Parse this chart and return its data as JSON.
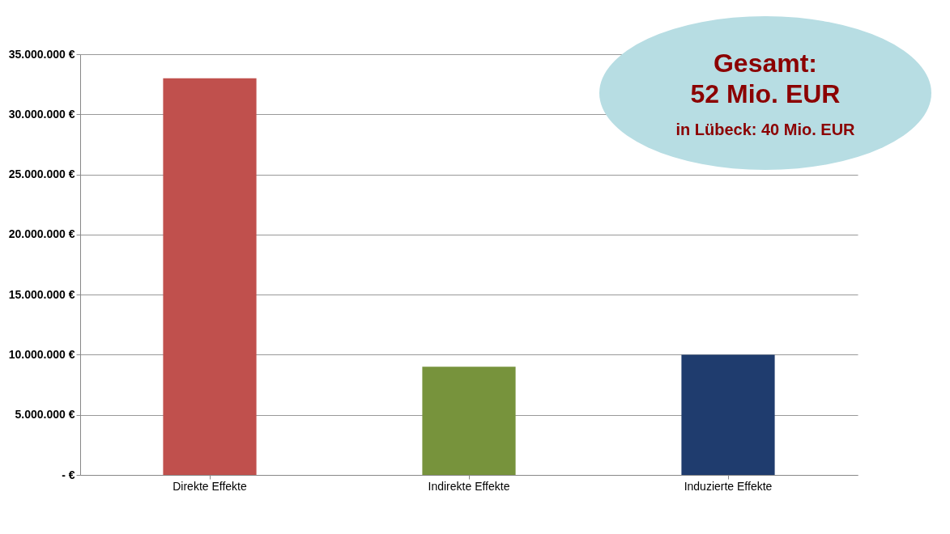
{
  "chart_data": {
    "type": "bar",
    "categories": [
      "Direkte Effekte",
      "Indirekte Effekte",
      "Induzierte Effekte"
    ],
    "values": [
      33000000,
      9000000,
      10000000
    ],
    "colors": [
      "#c0504d",
      "#77933c",
      "#1f3c6e"
    ],
    "ylim": [
      0,
      35000000
    ],
    "yticks": [
      {
        "value": 0,
        "label": "-  €"
      },
      {
        "value": 5000000,
        "label": "5.000.000 €"
      },
      {
        "value": 10000000,
        "label": "10.000.000 €"
      },
      {
        "value": 15000000,
        "label": "15.000.000 €"
      },
      {
        "value": 20000000,
        "label": "20.000.000 €"
      },
      {
        "value": 25000000,
        "label": "25.000.000 €"
      },
      {
        "value": 30000000,
        "label": "30.000.000 €"
      },
      {
        "value": 35000000,
        "label": "35.000.000 €"
      }
    ],
    "grid": true,
    "annotations": [
      "Gesamt:",
      "52 Mio. EUR",
      "in Lübeck:  40 Mio. EUR"
    ]
  }
}
